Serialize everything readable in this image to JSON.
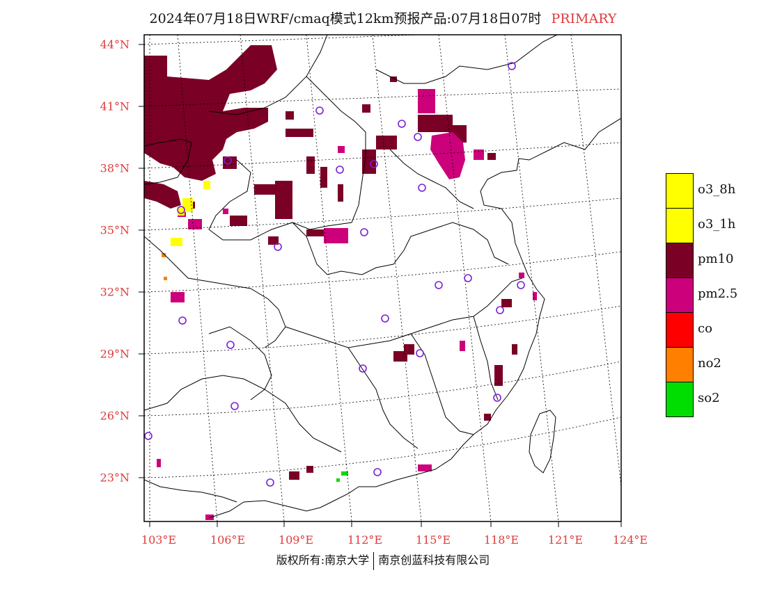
{
  "header": {
    "title": "2024年07月18日WRF/cmaq模式12km预报产品:07月18日07时",
    "primary_label": "PRIMARY"
  },
  "axes": {
    "lat_labels": [
      "44°N",
      "41°N",
      "38°N",
      "35°N",
      "32°N",
      "29°N",
      "26°N",
      "23°N"
    ],
    "lon_labels": [
      "103°E",
      "106°E",
      "109°E",
      "112°E",
      "115°E",
      "118°E",
      "121°E",
      "124°E"
    ]
  },
  "legend": {
    "items": [
      {
        "label": "o3_8h",
        "color": "#ffff00"
      },
      {
        "label": "o3_1h",
        "color": "#ffff00"
      },
      {
        "label": "pm10",
        "color": "#7a0026"
      },
      {
        "label": "pm2.5",
        "color": "#cc007a"
      },
      {
        "label": "co",
        "color": "#ff0000"
      },
      {
        "label": "no2",
        "color": "#ff7f00"
      },
      {
        "label": "so2",
        "color": "#00dd00"
      }
    ]
  },
  "footer": {
    "left": "版权所有:南京大学",
    "right": "南京创蓝科技有限公司"
  },
  "colors": {
    "label_red": "#e03a3a",
    "pm10": "#7a0026",
    "pm25": "#cc007a",
    "o3": "#ffff00",
    "no2": "#ff7f00",
    "so2": "#00dd00",
    "station_circle": "#7a1fd6"
  }
}
